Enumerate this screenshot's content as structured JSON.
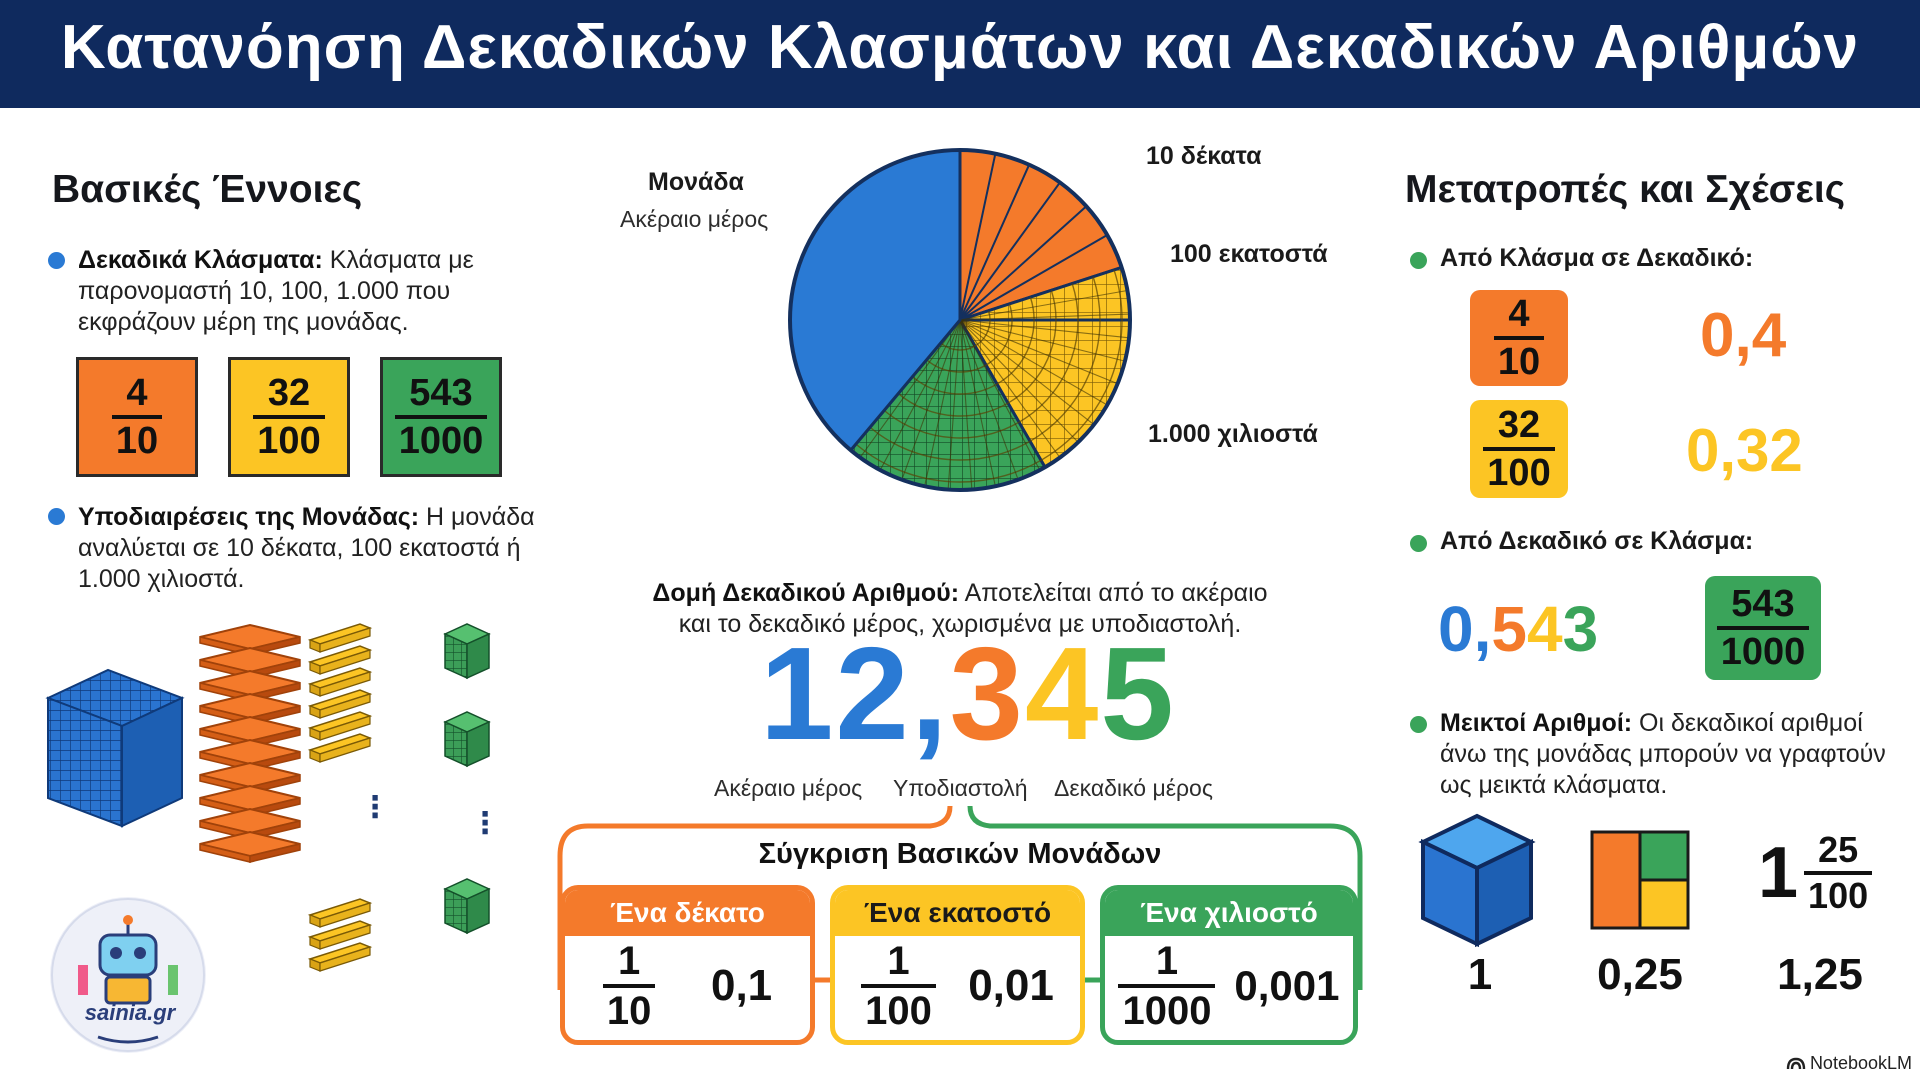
{
  "title": "Κατανόηση Δεκαδικών Κλασμάτων και Δεκαδικών Αριθμών",
  "colors": {
    "navy": "#0f2a5e",
    "blue": "#2a7ad4",
    "orange": "#f47a2b",
    "yellow": "#fcc524",
    "green": "#3aa45a"
  },
  "left": {
    "heading": "Βασικές Έννοιες",
    "bullet1": {
      "bold": "Δεκαδικά Κλάσματα:",
      "text": "Κλάσματα με παρονομαστή 10, 100, 1.000 που εκφράζουν μέρη της μονάδας."
    },
    "tiles": [
      {
        "num": "4",
        "den": "10"
      },
      {
        "num": "32",
        "den": "100"
      },
      {
        "num": "543",
        "den": "1000"
      }
    ],
    "bullet2": {
      "bold": "Υποδιαιρέσεις της Μονάδας:",
      "text": "Η μονάδα αναλύεται σε 10 δέκατα, 100 εκατοστά ή 1.000 χιλιοστά."
    },
    "dots": "⋮",
    "logo_text": "sainia.gr"
  },
  "center": {
    "pie_labels": {
      "unit": "Μονάδα",
      "unit_sub": "Ακέραιο μέρος",
      "tenths": "10 δέκατα",
      "hundredths": "100 εκατοστά",
      "thousandths": "1.000 χιλιοστά"
    },
    "structure_bold": "Δομή Δεκαδικού Αριθμού:",
    "structure_text": "Αποτελείται από το ακέραιο και το δεκαδικό μέρος, χωρισμένα με υποδιαστολή.",
    "big_number": {
      "int": "12",
      "comma": ",",
      "d1": "3",
      "d2": "4",
      "d3": "5"
    },
    "part_labels": {
      "integer": "Ακέραιο μέρος",
      "comma": "Υποδιαστολή",
      "decimal": "Δεκαδικό μέρος"
    },
    "compare_title": "Σύγκριση Βασικών Μονάδων",
    "compare": [
      {
        "label": "Ένα δέκατο",
        "num": "1",
        "den": "10",
        "value": "0,1"
      },
      {
        "label": "Ένα εκατοστό",
        "num": "1",
        "den": "100",
        "value": "0,01"
      },
      {
        "label": "Ένα χιλιοστό",
        "num": "1",
        "den": "1000",
        "value": "0,001"
      }
    ]
  },
  "right": {
    "heading": "Μετατροπές και Σχέσεις",
    "sub1": "Από Κλάσμα σε Δεκαδικό:",
    "conv": [
      {
        "num": "4",
        "den": "10",
        "value": "0,4"
      },
      {
        "num": "32",
        "den": "100",
        "value": "0,32"
      }
    ],
    "sub2": "Από Δεκαδικό σε Κλάσμα:",
    "dec": {
      "d0": "0",
      "comma": ",",
      "d1": "5",
      "d2": "4",
      "d3": "3"
    },
    "dec_frac": {
      "num": "543",
      "den": "1000"
    },
    "sub3_bold": "Μεικτοί Αριθμοί:",
    "sub3_text": "Οι δεκαδικοί αριθμοί άνω της μονάδας μπορούν να γραφτούν ως μεικτά κλάσματα.",
    "mixed": {
      "whole": "1",
      "num": "25",
      "den": "100"
    },
    "bottom_values": [
      "1",
      "0,25",
      "1,25"
    ]
  },
  "footer": "NotebookLM"
}
